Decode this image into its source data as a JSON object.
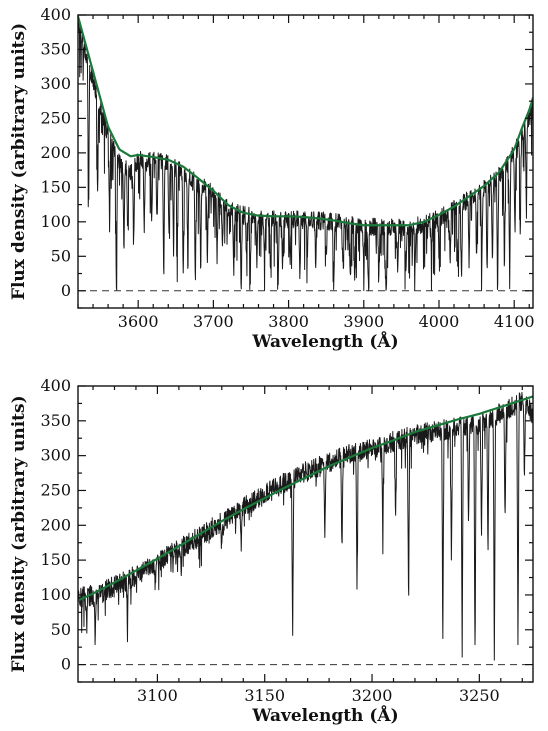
{
  "chart_data": [
    {
      "type": "line",
      "xlabel": "Wavelength (Å)",
      "ylabel": "Flux density (arbitrary units)",
      "xlim": [
        3520,
        4125
      ],
      "ylim": [
        -25,
        400
      ],
      "xticks": [
        3600,
        3700,
        3800,
        3900,
        4000,
        4100
      ],
      "yticks": [
        0,
        50,
        100,
        150,
        200,
        250,
        300,
        350,
        400
      ],
      "zero_line": {
        "y": 0,
        "style": "dashed"
      },
      "series": [
        {
          "role": "spectrum",
          "color": "#1a1a1a",
          "x": [
            3520,
            3530,
            3545,
            3560,
            3575,
            3590,
            3600,
            3620,
            3640,
            3660,
            3680,
            3700,
            3720,
            3740,
            3760,
            3780,
            3800,
            3820,
            3840,
            3860,
            3880,
            3900,
            3920,
            3940,
            3960,
            3980,
            4000,
            4020,
            4040,
            4060,
            4080,
            4100,
            4110,
            4120,
            4125
          ],
          "y": [
            390,
            345,
            285,
            225,
            185,
            170,
            190,
            190,
            185,
            172,
            155,
            140,
            118,
            110,
            106,
            104,
            104,
            103,
            102,
            100,
            96,
            93,
            93,
            93,
            92,
            96,
            106,
            118,
            133,
            148,
            168,
            200,
            228,
            250,
            262
          ]
        },
        {
          "role": "continuum fit",
          "color": "#1b7a3b",
          "x": [
            3520,
            3530,
            3545,
            3560,
            3575,
            3590,
            3600,
            3620,
            3640,
            3660,
            3680,
            3700,
            3720,
            3740,
            3760,
            3780,
            3800,
            3820,
            3840,
            3860,
            3880,
            3900,
            3920,
            3940,
            3960,
            3980,
            4000,
            4020,
            4040,
            4060,
            4080,
            4100,
            4110,
            4120,
            4125
          ],
          "y": [
            398,
            358,
            298,
            238,
            205,
            195,
            197,
            194,
            190,
            180,
            163,
            145,
            124,
            113,
            109,
            108,
            108,
            107,
            105,
            102,
            98,
            95,
            95,
            95,
            95,
            100,
            110,
            122,
            137,
            152,
            172,
            205,
            235,
            262,
            280
          ]
        }
      ],
      "absorption_lines": [
        {
          "x": 3534,
          "depth": 200
        },
        {
          "x": 3546,
          "depth": 150
        },
        {
          "x": 3562,
          "depth": 130
        },
        {
          "x": 3571,
          "depth": 210
        },
        {
          "x": 3581,
          "depth": 130
        },
        {
          "x": 3586,
          "depth": 90
        },
        {
          "x": 3594,
          "depth": 120
        },
        {
          "x": 3608,
          "depth": 110
        },
        {
          "x": 3618,
          "depth": 100
        },
        {
          "x": 3625,
          "depth": 95
        },
        {
          "x": 3634,
          "depth": 150
        },
        {
          "x": 3641,
          "depth": 100
        },
        {
          "x": 3647,
          "depth": 130
        },
        {
          "x": 3652,
          "depth": 110
        },
        {
          "x": 3660,
          "depth": 170
        },
        {
          "x": 3666,
          "depth": 130
        },
        {
          "x": 3676,
          "depth": 160
        },
        {
          "x": 3683,
          "depth": 110
        },
        {
          "x": 3692,
          "depth": 100
        },
        {
          "x": 3705,
          "depth": 90
        },
        {
          "x": 3712,
          "depth": 75
        },
        {
          "x": 3727,
          "depth": 80
        },
        {
          "x": 3737,
          "depth": 110
        },
        {
          "x": 3744,
          "depth": 60
        },
        {
          "x": 3749,
          "depth": 95
        },
        {
          "x": 3758,
          "depth": 70
        },
        {
          "x": 3768,
          "depth": 75
        },
        {
          "x": 3776,
          "depth": 60
        },
        {
          "x": 3786,
          "depth": 100
        },
        {
          "x": 3792,
          "depth": 65
        },
        {
          "x": 3802,
          "depth": 70
        },
        {
          "x": 3815,
          "depth": 88
        },
        {
          "x": 3825,
          "depth": 55
        },
        {
          "x": 3836,
          "depth": 70
        },
        {
          "x": 3850,
          "depth": 60
        },
        {
          "x": 3860,
          "depth": 98
        },
        {
          "x": 3872,
          "depth": 62
        },
        {
          "x": 3882,
          "depth": 75
        },
        {
          "x": 3888,
          "depth": 92
        },
        {
          "x": 3900,
          "depth": 75
        },
        {
          "x": 3906,
          "depth": 90
        },
        {
          "x": 3920,
          "depth": 70
        },
        {
          "x": 3930,
          "depth": 90
        },
        {
          "x": 3945,
          "depth": 60
        },
        {
          "x": 3956,
          "depth": 75
        },
        {
          "x": 3968,
          "depth": 55
        },
        {
          "x": 3990,
          "depth": 55
        },
        {
          "x": 4000,
          "depth": 60
        },
        {
          "x": 4015,
          "depth": 70
        },
        {
          "x": 4025,
          "depth": 95
        },
        {
          "x": 4030,
          "depth": 120
        },
        {
          "x": 4040,
          "depth": 98
        },
        {
          "x": 4050,
          "depth": 95
        },
        {
          "x": 4057,
          "depth": 110
        },
        {
          "x": 4064,
          "depth": 140
        },
        {
          "x": 4071,
          "depth": 120
        },
        {
          "x": 4078,
          "depth": 160
        },
        {
          "x": 4087,
          "depth": 150
        },
        {
          "x": 4094,
          "depth": 170
        },
        {
          "x": 4101,
          "depth": 130
        },
        {
          "x": 4108,
          "depth": 150
        },
        {
          "x": 4116,
          "depth": 110
        }
      ]
    },
    {
      "type": "line",
      "xlabel": "Wavelength (Å)",
      "ylabel": "Flux density (arbitrary units)",
      "xlim": [
        3063,
        3275
      ],
      "ylim": [
        -25,
        400
      ],
      "xticks": [
        3100,
        3150,
        3200,
        3250
      ],
      "yticks": [
        0,
        50,
        100,
        150,
        200,
        250,
        300,
        350,
        400
      ],
      "zero_line": {
        "y": 0,
        "style": "dashed"
      },
      "series": [
        {
          "role": "spectrum",
          "color": "#1a1a1a",
          "x": [
            3063,
            3070,
            3080,
            3090,
            3100,
            3110,
            3120,
            3130,
            3140,
            3150,
            3160,
            3170,
            3180,
            3190,
            3200,
            3210,
            3220,
            3230,
            3240,
            3250,
            3260,
            3270,
            3275
          ],
          "y": [
            95,
            100,
            112,
            128,
            148,
            165,
            185,
            205,
            225,
            245,
            262,
            278,
            290,
            302,
            310,
            320,
            330,
            335,
            340,
            345,
            362,
            378,
            360
          ]
        },
        {
          "role": "continuum fit",
          "color": "#1b7a3b",
          "x": [
            3063,
            3070,
            3080,
            3090,
            3100,
            3110,
            3120,
            3130,
            3140,
            3150,
            3160,
            3170,
            3180,
            3190,
            3200,
            3210,
            3220,
            3230,
            3240,
            3250,
            3260,
            3270,
            3275
          ],
          "y": [
            92,
            102,
            118,
            135,
            152,
            170,
            188,
            206,
            223,
            239,
            255,
            270,
            285,
            298,
            311,
            322,
            334,
            343,
            352,
            360,
            370,
            380,
            385
          ]
        }
      ],
      "absorption_lines": [
        {
          "x": 3067,
          "depth": 40
        },
        {
          "x": 3071,
          "depth": 80
        },
        {
          "x": 3086,
          "depth": 60
        },
        {
          "x": 3099,
          "depth": 30
        },
        {
          "x": 3111,
          "depth": 35
        },
        {
          "x": 3130,
          "depth": 40
        },
        {
          "x": 3139,
          "depth": 60
        },
        {
          "x": 3163,
          "depth": 240
        },
        {
          "x": 3178,
          "depth": 110
        },
        {
          "x": 3186,
          "depth": 140
        },
        {
          "x": 3193,
          "depth": 210
        },
        {
          "x": 3205,
          "depth": 130
        },
        {
          "x": 3211,
          "depth": 120
        },
        {
          "x": 3217,
          "depth": 240
        },
        {
          "x": 3233,
          "depth": 300
        },
        {
          "x": 3237,
          "depth": 200
        },
        {
          "x": 3242,
          "depth": 320
        },
        {
          "x": 3245,
          "depth": 150
        },
        {
          "x": 3248,
          "depth": 340
        },
        {
          "x": 3251,
          "depth": 180
        },
        {
          "x": 3254,
          "depth": 200
        },
        {
          "x": 3257,
          "depth": 355
        },
        {
          "x": 3262,
          "depth": 160
        },
        {
          "x": 3268,
          "depth": 360
        },
        {
          "x": 3271,
          "depth": 120
        }
      ]
    }
  ]
}
